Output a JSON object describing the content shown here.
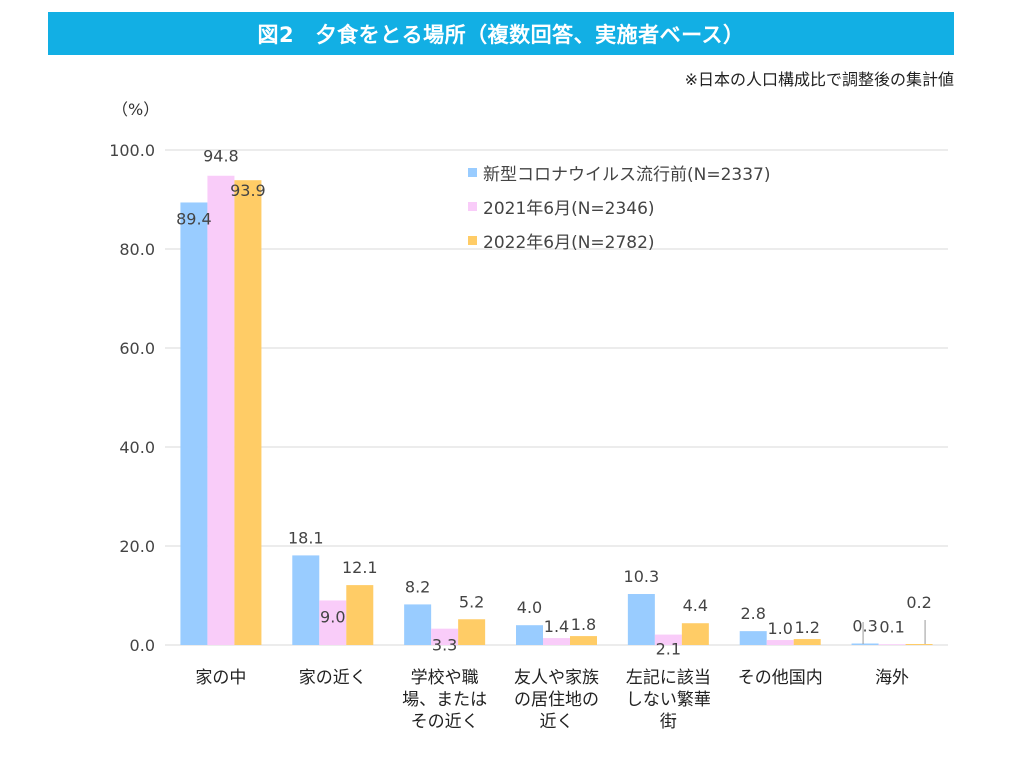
{
  "header": {
    "title": "図2　夕食をとる場所（複数回答、実施者ベース）",
    "note": "※日本の人口構成比で調整後の集計値"
  },
  "chart_data": {
    "type": "bar",
    "title": "図2　夕食をとる場所（複数回答、実施者ベース）",
    "ylabel": "（%）",
    "xlabel": "",
    "ylim": [
      0,
      100
    ],
    "yticks": [
      "0.0",
      "20.0",
      "40.0",
      "60.0",
      "80.0",
      "100.0"
    ],
    "categories": [
      [
        "家の中"
      ],
      [
        "家の近く"
      ],
      [
        "学校や職",
        "場、または",
        "その近く"
      ],
      [
        "友人や家族",
        "の居住地の",
        "近く"
      ],
      [
        "左記に該当",
        "しない繁華",
        "街"
      ],
      [
        "その他国内"
      ],
      [
        "海外"
      ]
    ],
    "series": [
      {
        "name": "新型コロナウイルス流行前(N=2337)",
        "color": "#99ccff",
        "values": [
          89.4,
          18.1,
          8.2,
          4.0,
          10.3,
          2.8,
          0.3
        ],
        "labels": [
          "89.4",
          "18.1",
          "8.2",
          "4.0",
          "10.3",
          "2.8",
          "0.3"
        ]
      },
      {
        "name": "2021年6月(N=2346)",
        "color": "#f9ccf9",
        "values": [
          94.8,
          9.0,
          3.3,
          1.4,
          2.1,
          1.0,
          0.1
        ],
        "labels": [
          "94.8",
          "9.0",
          "3.3",
          "1.4",
          "2.1",
          "1.0",
          "0.1"
        ]
      },
      {
        "name": "2022年6月(N=2782)",
        "color": "#ffcc66",
        "values": [
          93.9,
          12.1,
          5.2,
          1.8,
          4.4,
          1.2,
          0.2
        ],
        "labels": [
          "93.9",
          "12.1",
          "5.2",
          "1.8",
          "4.4",
          "1.2",
          "0.2"
        ]
      }
    ],
    "legend_position": "top-right",
    "grid": true
  },
  "colors": {
    "banner": "#12afe4",
    "grid": "#d9d9d9"
  }
}
